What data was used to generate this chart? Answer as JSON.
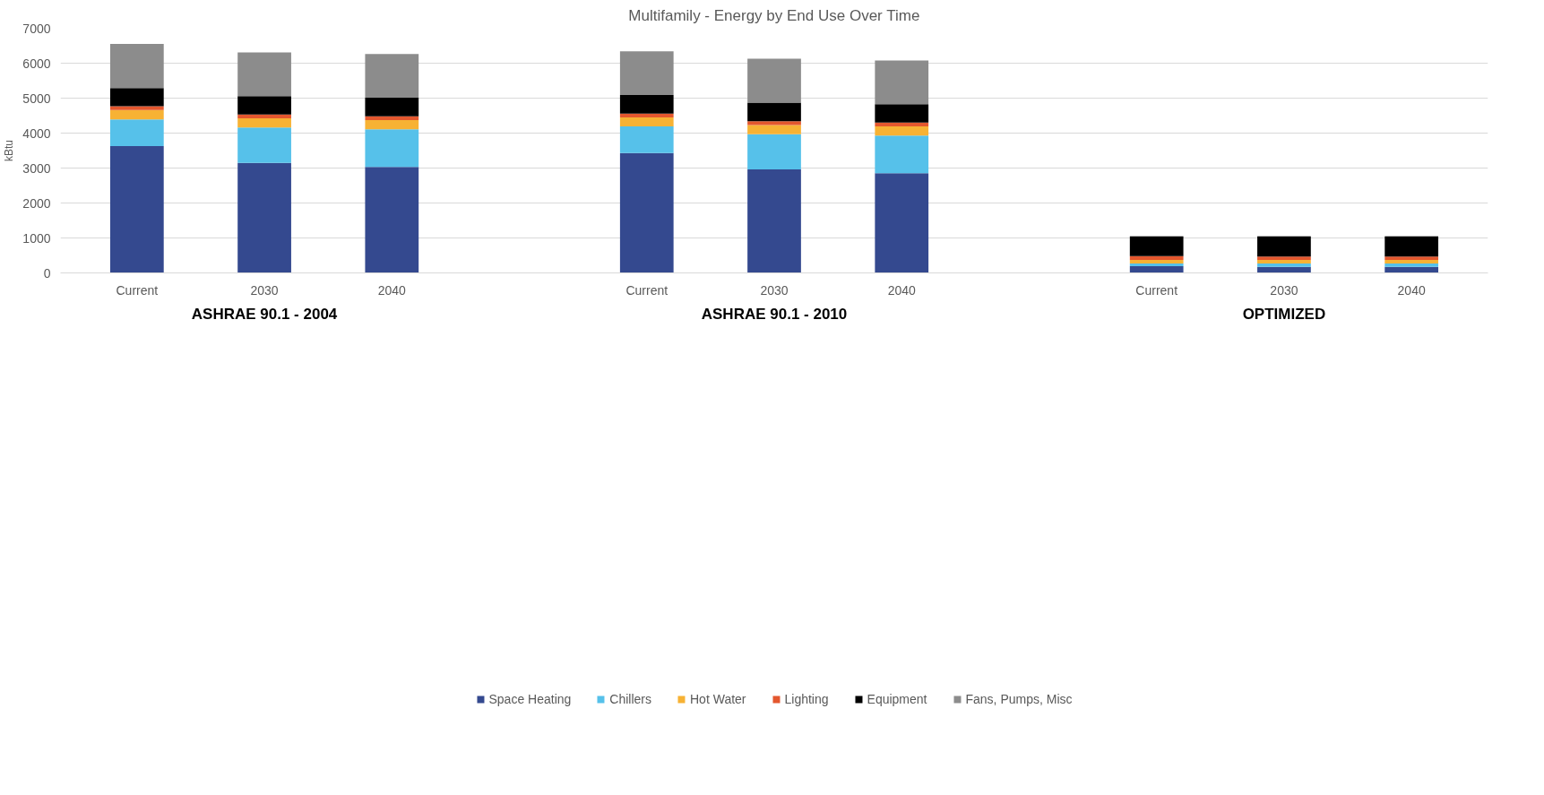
{
  "chart_data": {
    "type": "bar",
    "stacked": true,
    "title": "Multifamily - Energy by End Use Over Time",
    "ylabel": "kBtu",
    "categories": [
      "Current",
      "2030",
      "2040",
      null,
      "Current",
      "2030",
      "2040",
      null,
      "Current",
      "2030",
      "2040"
    ],
    "annotations": [
      "ASHRAE 90.1 - 2004",
      "ASHRAE 90.1 - 2010",
      "OPTIMIZED"
    ],
    "series": [
      {
        "name": "Space Heating",
        "color": "#34498f",
        "values": [
          3630,
          3150,
          3030,
          null,
          3430,
          2960,
          2850,
          null,
          190,
          170,
          170
        ]
      },
      {
        "name": "Chillers",
        "color": "#56c1ea",
        "values": [
          760,
          1010,
          1080,
          null,
          760,
          1010,
          1080,
          null,
          80,
          100,
          100
        ]
      },
      {
        "name": "Hot Water",
        "color": "#f7b234",
        "values": [
          270,
          260,
          260,
          null,
          260,
          260,
          260,
          null,
          100,
          100,
          100
        ]
      },
      {
        "name": "Lighting",
        "color": "#e4572e",
        "values": [
          110,
          110,
          110,
          null,
          110,
          110,
          110,
          null,
          110,
          100,
          100
        ]
      },
      {
        "name": "Equipment",
        "color": "#000000",
        "values": [
          520,
          530,
          530,
          null,
          530,
          530,
          530,
          null,
          560,
          570,
          570
        ]
      },
      {
        "name": "Fans, Pumps, Misc",
        "color": "#8c8c8c",
        "values": [
          1260,
          1250,
          1250,
          null,
          1250,
          1260,
          1250,
          null,
          20,
          20,
          20
        ]
      }
    ],
    "ylim": [
      0,
      7000
    ],
    "yticks": [
      0,
      1000,
      2000,
      3000,
      4000,
      5000,
      6000,
      7000
    ],
    "grid": "y",
    "legend": "bottom"
  }
}
